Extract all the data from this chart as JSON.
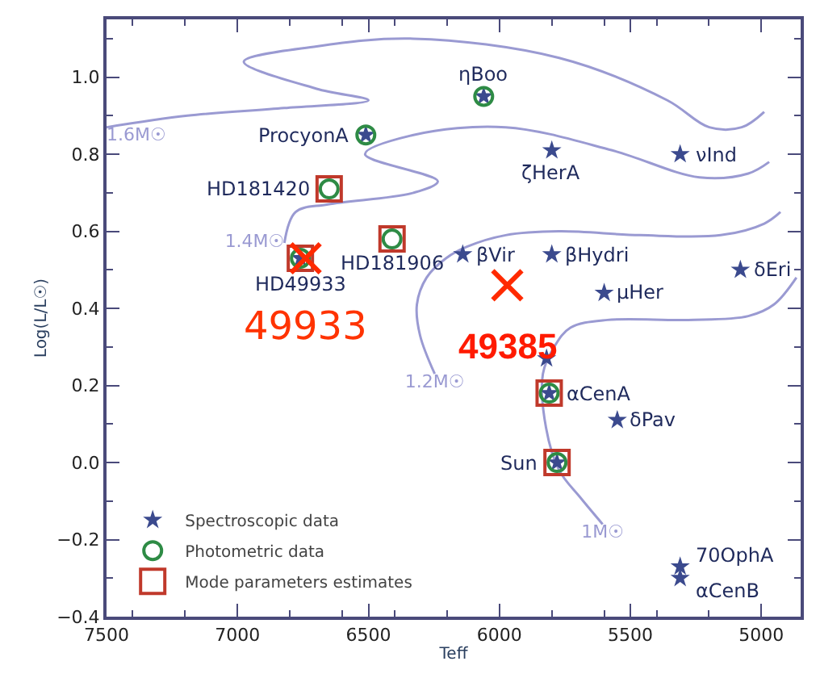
{
  "chart_data": {
    "type": "scatter",
    "xlabel": "Teff",
    "ylabel": "Log(L/L☉)",
    "xlim": [
      7500,
      4850
    ],
    "xticks": [
      7500,
      7000,
      6500,
      6000,
      5500,
      5000
    ],
    "ylim": [
      -0.4,
      1.15
    ],
    "yticks": [
      {
        "value": -0.4,
        "label": "−0.4"
      },
      {
        "value": -0.2,
        "label": "−0.2"
      },
      {
        "value": 0,
        "label": "0.0"
      },
      {
        "value": 0.2,
        "label": "0.2"
      },
      {
        "value": 0.4,
        "label": "0.4"
      },
      {
        "value": 0.6,
        "label": "0.6"
      },
      {
        "value": 0.8,
        "label": "0.8"
      },
      {
        "value": 1.0,
        "label": "1.0"
      }
    ],
    "legend": "bottom left",
    "series": [
      {
        "name": "1.6M☉",
        "type": "line",
        "color": "#9a9ad2",
        "marker": "none",
        "x": [
          7500,
          7191,
          6821,
          6500,
          6698,
          6976,
          6698,
          6328,
          5772,
          5359,
          5199,
          5075,
          4989
        ],
        "values": [
          0.87,
          0.9,
          0.92,
          0.94,
          0.97,
          1.04,
          1.08,
          1.1,
          1.05,
          0.94,
          0.87,
          0.87,
          0.91
        ]
      },
      {
        "name": "1.4M☉",
        "type": "line",
        "color": "#9a9ad2",
        "marker": "none",
        "x": [
          6821,
          6778,
          6655,
          6328,
          6235,
          6513,
          6328,
          5976,
          5569,
          5236,
          5050,
          4970
        ],
        "values": [
          0.57,
          0.65,
          0.67,
          0.7,
          0.73,
          0.8,
          0.85,
          0.87,
          0.81,
          0.74,
          0.75,
          0.78
        ]
      },
      {
        "name": "1.2M☉",
        "type": "line",
        "color": "#9a9ad2",
        "marker": "none",
        "x": [
          6247,
          6303,
          6315,
          6278,
          6204,
          6124,
          5976,
          5772,
          5464,
          5155,
          4989,
          4927
        ],
        "values": [
          0.23,
          0.33,
          0.41,
          0.48,
          0.53,
          0.56,
          0.59,
          0.6,
          0.59,
          0.59,
          0.62,
          0.65
        ]
      },
      {
        "name": "1M☉",
        "type": "line",
        "color": "#9a9ad2",
        "marker": "none",
        "x": [
          5606,
          5692,
          5772,
          5822,
          5834,
          5791,
          5729,
          5587,
          5279,
          5050,
          4952,
          4866
        ],
        "values": [
          -0.16,
          -0.09,
          -0.02,
          0.09,
          0.23,
          0.3,
          0.35,
          0.37,
          0.37,
          0.38,
          0.41,
          0.48
        ]
      },
      {
        "name": "Spectroscopic data",
        "color": "#3b4a8e",
        "marker": "star",
        "x": [
          6060,
          6510,
          5800,
          5310,
          6760,
          6140,
          5800,
          5600,
          5080,
          5820,
          5810,
          5550,
          5780,
          5310,
          5310
        ],
        "values": [
          0.95,
          0.85,
          0.81,
          0.8,
          0.53,
          0.54,
          0.54,
          0.44,
          0.5,
          0.27,
          0.18,
          0.11,
          0.0,
          -0.27,
          -0.3
        ]
      },
      {
        "name": "Photometric data",
        "color": "#2e8b45",
        "marker": "circle",
        "x": [
          6060,
          6510,
          6650,
          6410,
          6760,
          5810,
          5780
        ],
        "values": [
          0.95,
          0.85,
          0.71,
          0.58,
          0.53,
          0.18,
          0.0
        ]
      },
      {
        "name": "Mode parameters estimates",
        "color": "#c0392b",
        "marker": "square",
        "x": [
          6650,
          6410,
          6760,
          5810,
          5780
        ],
        "values": [
          0.71,
          0.58,
          0.53,
          0.18,
          0.0
        ]
      },
      {
        "color": "#ff2a00",
        "marker": "cross",
        "x": [
          6740,
          5970
        ],
        "values": [
          0.53,
          0.46
        ]
      }
    ],
    "annotations": [
      {
        "text": "ηBoo",
        "x": 6060,
        "y": 0.95
      },
      {
        "text": "ProcyonA",
        "x": 6510,
        "y": 0.85
      },
      {
        "text": "ζHerA",
        "x": 5800,
        "y": 0.81
      },
      {
        "text": "νInd",
        "x": 5310,
        "y": 0.8
      },
      {
        "text": "HD181420",
        "x": 6650,
        "y": 0.71
      },
      {
        "text": "HD181906",
        "x": 6410,
        "y": 0.58
      },
      {
        "text": "HD49933",
        "x": 6760,
        "y": 0.53
      },
      {
        "text": "βVir",
        "x": 6140,
        "y": 0.54
      },
      {
        "text": "βHydri",
        "x": 5800,
        "y": 0.54
      },
      {
        "text": "μHer",
        "x": 5600,
        "y": 0.44
      },
      {
        "text": "δEri",
        "x": 5080,
        "y": 0.5
      },
      {
        "text": "αCenA",
        "x": 5810,
        "y": 0.18
      },
      {
        "text": "δPav",
        "x": 5550,
        "y": 0.11
      },
      {
        "text": "Sun",
        "x": 5780,
        "y": 0.0
      },
      {
        "text": "70OphA",
        "x": 5310,
        "y": -0.27
      },
      {
        "text": "αCenB",
        "x": 5310,
        "y": -0.3
      },
      {
        "text": "49933",
        "x": 6740,
        "y": 0.53
      },
      {
        "text": "49385",
        "x": 5970,
        "y": 0.46
      }
    ]
  }
}
